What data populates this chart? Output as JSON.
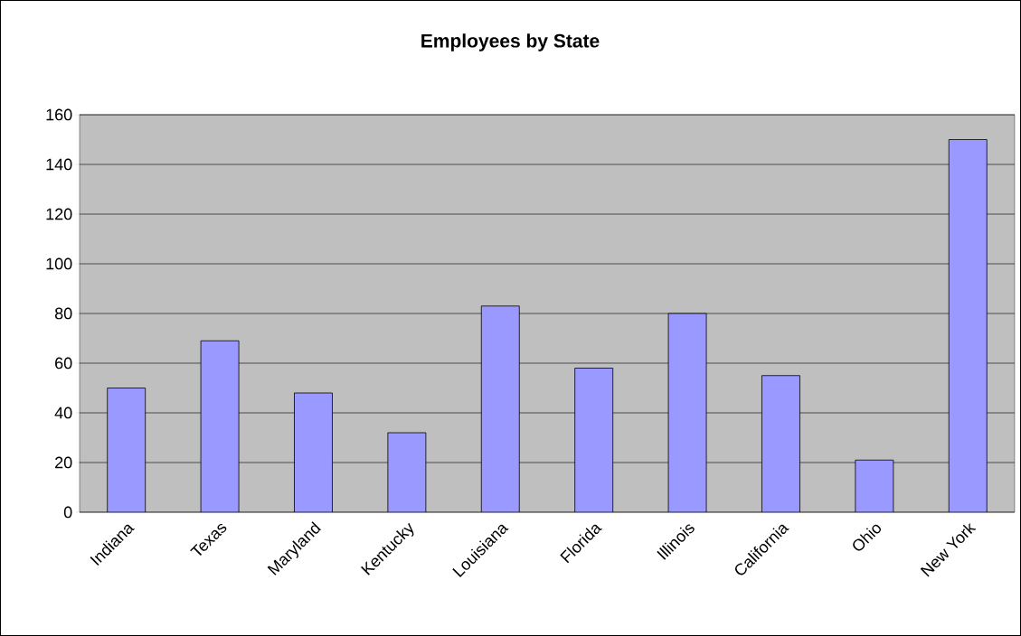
{
  "chart_data": {
    "type": "bar",
    "title": "Employees by State",
    "categories": [
      "Indiana",
      "Texas",
      "Maryland",
      "Kentucky",
      "Louisiana",
      "Florida",
      "Illinois",
      "California",
      "Ohio",
      "New York"
    ],
    "values": [
      50,
      69,
      48,
      32,
      83,
      58,
      80,
      55,
      21,
      150
    ],
    "color": "#9999ff",
    "ylim": [
      0,
      160
    ],
    "yticks": [
      0,
      20,
      40,
      60,
      80,
      100,
      120,
      140,
      160
    ],
    "grid": "y"
  }
}
